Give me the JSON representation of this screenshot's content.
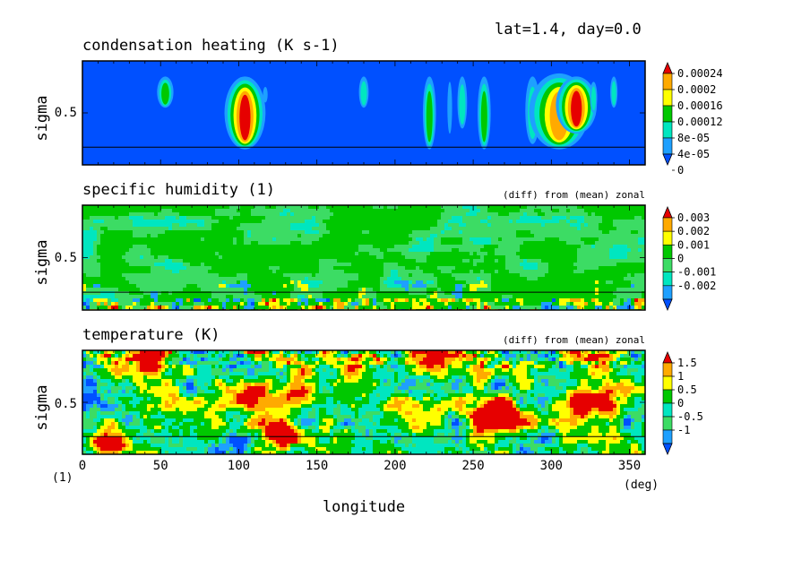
{
  "header": {
    "label": "lat=1.4, day=0.0"
  },
  "colors": {
    "blue": "#0050ff",
    "cyan_blue": "#1ea0ff",
    "cyan": "#00e6c0",
    "green_cyan": "#3cdc64",
    "green": "#00c800",
    "yellow": "#ffff00",
    "orange": "#ffaa00",
    "red": "#e60000",
    "line": "#000000"
  },
  "chart_data": [
    {
      "type": "heatmap",
      "title": "condensation heating (K s-1)",
      "subtitle": "",
      "ylabel": "sigma",
      "y_ticks": [
        "0.5"
      ],
      "xlim": [
        0,
        360
      ],
      "ylim": [
        0.0,
        1.0
      ],
      "reference_line_sigma": 0.17,
      "colorbar": {
        "labels": [
          "0.00024",
          "0.0002",
          "0.00016",
          "0.00012",
          "8e-05",
          "4e-05",
          "0"
        ],
        "colors": [
          "#e60000",
          "#ffaa00",
          "#ffff00",
          "#00c800",
          "#00e6c0",
          "#1ea0ff",
          "#0050ff"
        ]
      },
      "features": [
        {
          "lon": 53,
          "width": 5,
          "level": 3,
          "sigma_range": [
            0.55,
            0.85
          ]
        },
        {
          "lon": 104,
          "width": 7,
          "level": 6,
          "sigma_range": [
            0.15,
            0.85
          ]
        },
        {
          "lon": 117,
          "width": 3,
          "level": 1,
          "sigma_range": [
            0.6,
            0.75
          ]
        },
        {
          "lon": 180,
          "width": 4,
          "level": 2,
          "sigma_range": [
            0.55,
            0.85
          ]
        },
        {
          "lon": 222,
          "width": 4,
          "level": 3,
          "sigma_range": [
            0.15,
            0.85
          ]
        },
        {
          "lon": 235,
          "width": 3,
          "level": 1,
          "sigma_range": [
            0.3,
            0.8
          ]
        },
        {
          "lon": 243,
          "width": 4,
          "level": 2,
          "sigma_range": [
            0.35,
            0.85
          ]
        },
        {
          "lon": 257,
          "width": 4,
          "level": 3,
          "sigma_range": [
            0.15,
            0.85
          ]
        },
        {
          "lon": 288,
          "width": 6,
          "level": 2,
          "sigma_range": [
            0.2,
            0.85
          ]
        },
        {
          "lon": 305,
          "width": 12,
          "level": 5,
          "sigma_range": [
            0.15,
            0.88
          ]
        },
        {
          "lon": 316,
          "width": 7,
          "level": 6,
          "sigma_range": [
            0.3,
            0.85
          ]
        },
        {
          "lon": 327,
          "width": 3,
          "level": 2,
          "sigma_range": [
            0.5,
            0.8
          ]
        },
        {
          "lon": 340,
          "width": 3,
          "level": 2,
          "sigma_range": [
            0.55,
            0.85
          ]
        }
      ]
    },
    {
      "type": "heatmap",
      "title": "specific humidity (1)",
      "subtitle": "(diff) from (mean) zonal",
      "ylabel": "sigma",
      "y_ticks": [
        "0.5"
      ],
      "xlim": [
        0,
        360
      ],
      "ylim": [
        0.0,
        1.0
      ],
      "reference_line_sigma": 0.17,
      "colorbar": {
        "labels": [
          "0.003",
          "0.002",
          "0.001",
          "0",
          "-0.001",
          "-0.002"
        ],
        "colors": [
          "#e60000",
          "#ffaa00",
          "#ffff00",
          "#00c800",
          "#3cdc64",
          "#00e6c0",
          "#1ea0ff",
          "#0050ff"
        ]
      }
    },
    {
      "type": "heatmap",
      "title": "temperature (K)",
      "subtitle": "(diff) from (mean) zonal",
      "ylabel": "sigma",
      "y_ticks": [
        "0.5"
      ],
      "xlim": [
        0,
        360
      ],
      "ylim": [
        0.0,
        1.0
      ],
      "reference_line_sigma": 0.17,
      "colorbar": {
        "labels": [
          "1.5",
          "1",
          "0.5",
          "0",
          "-0.5",
          "-1"
        ],
        "colors": [
          "#e60000",
          "#ffaa00",
          "#ffff00",
          "#00c800",
          "#00e6c0",
          "#3cdc64",
          "#1ea0ff",
          "#0050ff"
        ]
      },
      "hotspots": [
        {
          "lon": 15,
          "sigma": 0.12,
          "level": 7
        },
        {
          "lon": 105,
          "sigma": 0.62,
          "level": 6
        },
        {
          "lon": 125,
          "sigma": 0.25,
          "level": 7
        },
        {
          "lon": 130,
          "sigma": 0.6,
          "level": 5
        },
        {
          "lon": 178,
          "sigma": 0.88,
          "level": 6
        },
        {
          "lon": 225,
          "sigma": 0.95,
          "level": 7
        },
        {
          "lon": 262,
          "sigma": 0.42,
          "level": 7
        },
        {
          "lon": 272,
          "sigma": 0.35,
          "level": 7
        },
        {
          "lon": 320,
          "sigma": 0.55,
          "level": 6
        },
        {
          "lon": 40,
          "sigma": 0.95,
          "level": 6
        },
        {
          "lon": 330,
          "sigma": 0.97,
          "level": 6
        }
      ]
    }
  ],
  "x_axis": {
    "label": "longitude",
    "ticks": [
      0,
      50,
      100,
      150,
      200,
      250,
      300,
      350
    ],
    "unit": "(deg)",
    "corner_label": "(1)"
  }
}
